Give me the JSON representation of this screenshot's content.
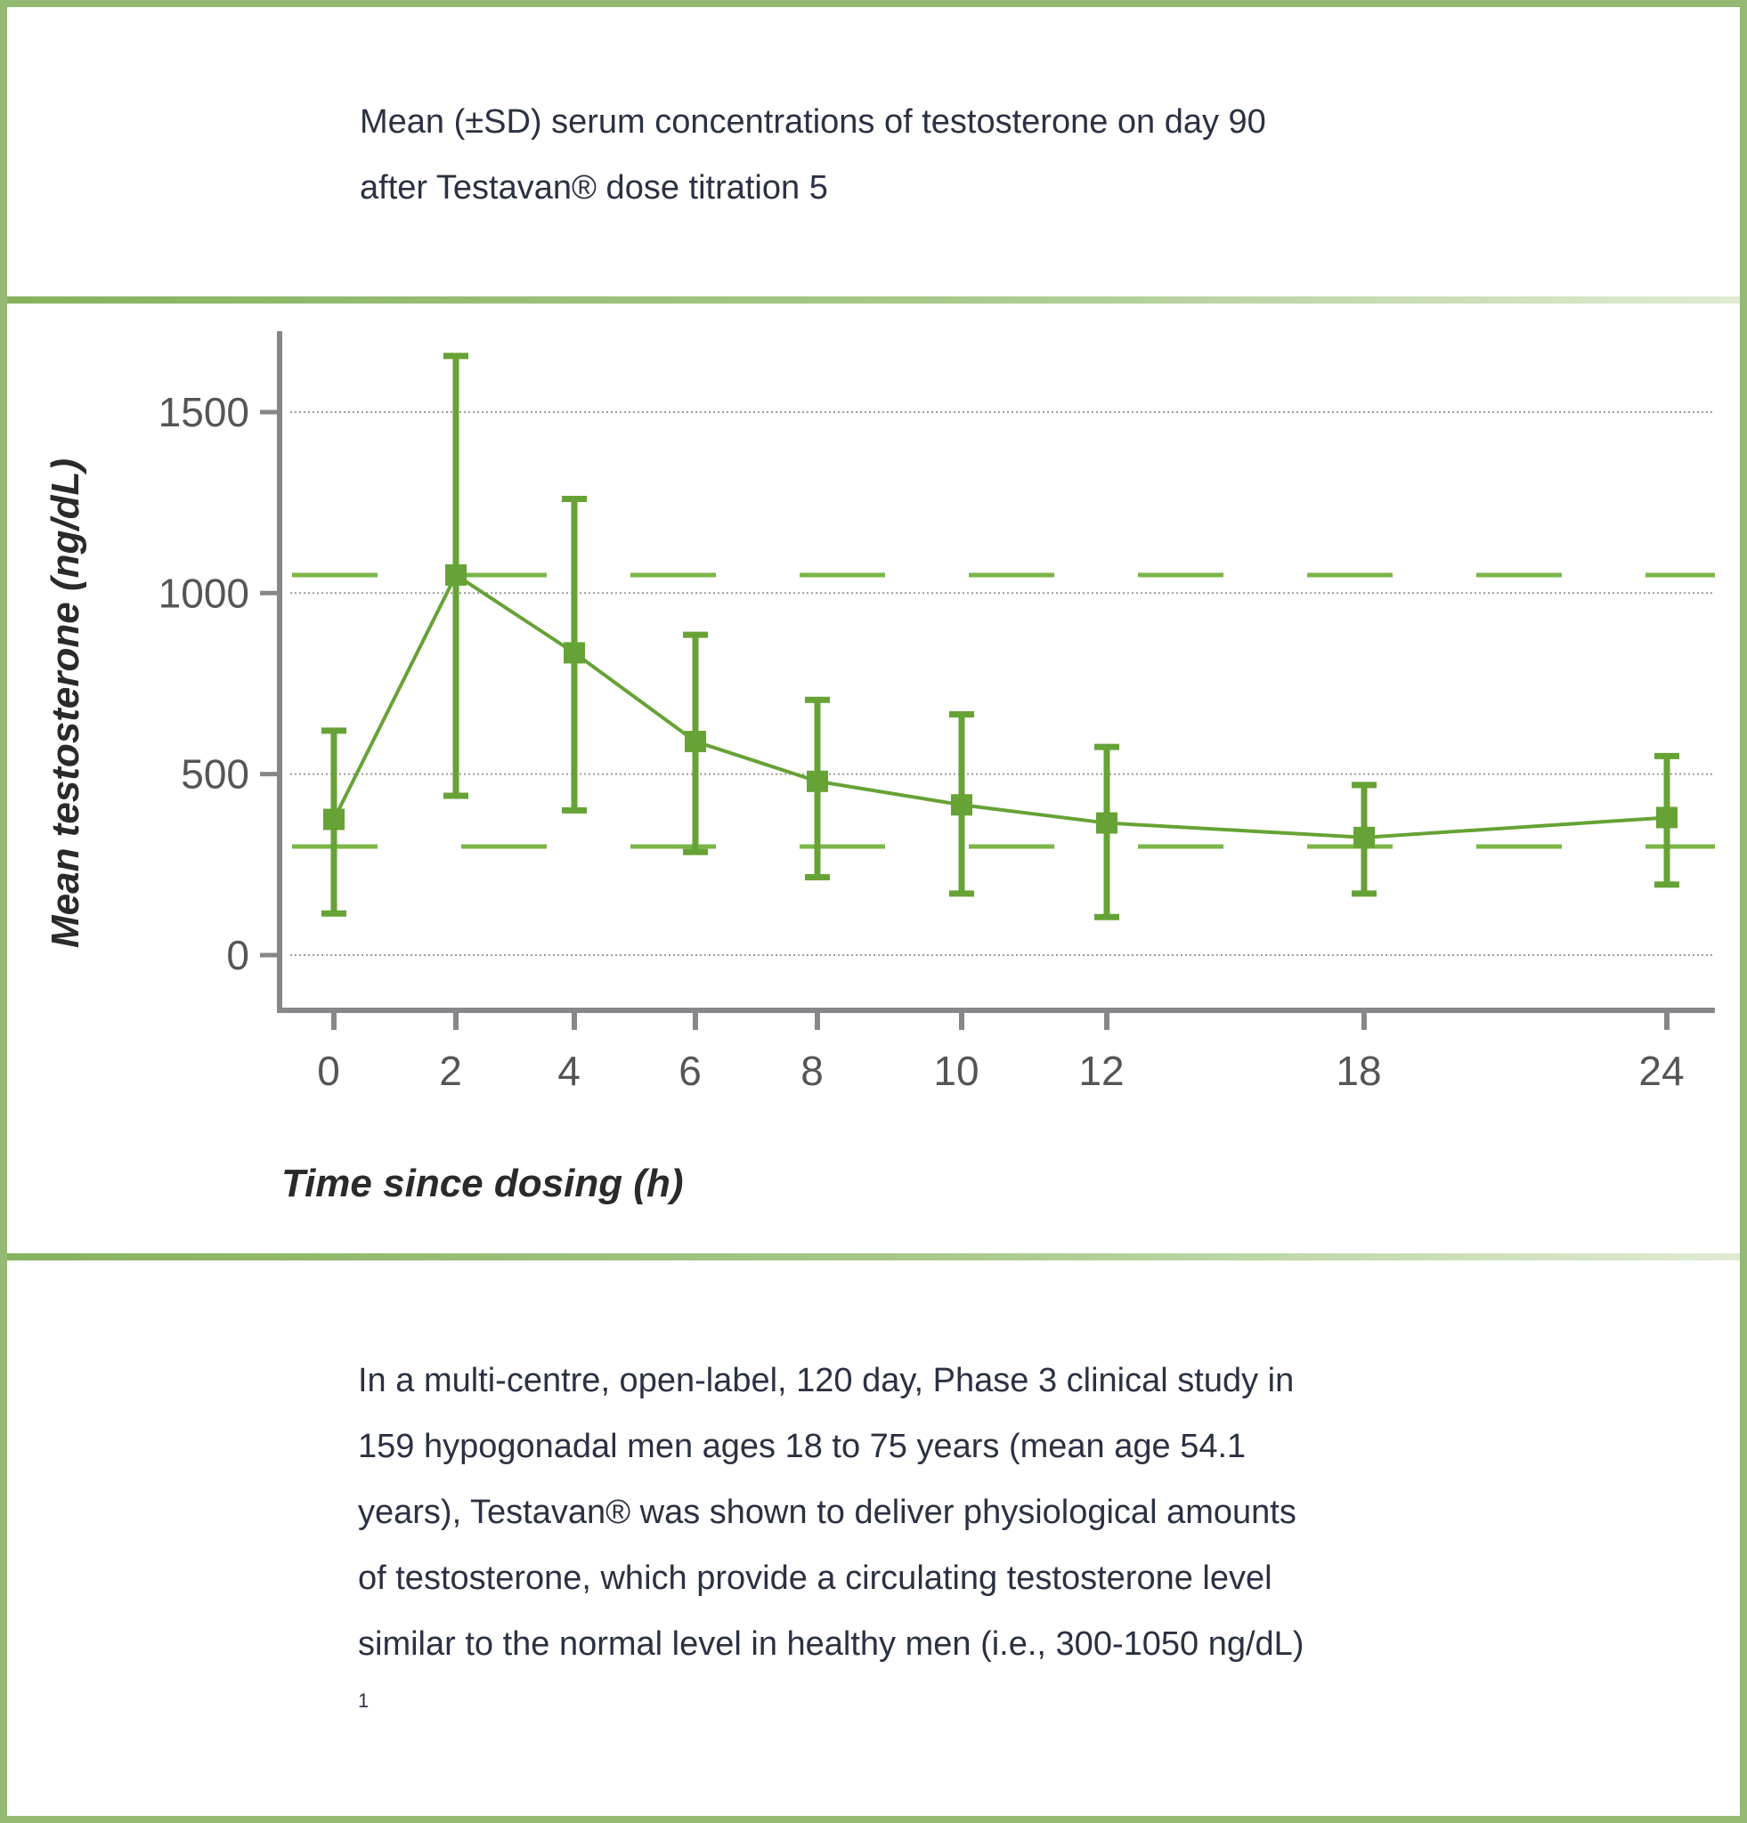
{
  "header": {
    "caption_line1": "Mean (±SD) serum concentrations of testosterone on day 90",
    "caption_line2": "after Testavan® dose titration 5"
  },
  "colors": {
    "border": "#94b972",
    "series": "#66a235",
    "reference_line": "#7ab648",
    "axis": "#85878a",
    "grid": "#9a9a9a",
    "text": "#2a3142"
  },
  "chart_data": {
    "type": "line",
    "xlabel": "Time since dosing (h)",
    "ylabel": "Mean testosterone (ng/dL)",
    "x": [
      0,
      2,
      4,
      6,
      8,
      10,
      12,
      18,
      24
    ],
    "x_tick_labels": [
      "0",
      "2",
      "4",
      "6",
      "8",
      "10",
      "12",
      "18",
      "24"
    ],
    "y_ticks": [
      0,
      500,
      1000,
      1500
    ],
    "ylim": [
      -155,
      1725
    ],
    "grid": "horizontal dotted",
    "series": [
      {
        "values": [
          375,
          1050,
          835,
          590,
          480,
          415,
          365,
          325,
          380
        ],
        "sd_lower": [
          115,
          440,
          400,
          285,
          215,
          170,
          105,
          170,
          195
        ],
        "sd_upper": [
          620,
          1655,
          1260,
          885,
          705,
          665,
          575,
          470,
          550
        ],
        "marker": "square"
      }
    ],
    "reference_lines": [
      {
        "y": 300,
        "style": "dashed"
      },
      {
        "y": 1050,
        "style": "dashed"
      }
    ]
  },
  "body": {
    "lines": [
      "In a multi-centre, open-label, 120 day, Phase 3 clinical study in",
      "159 hypogonadal men ages 18 to 75 years (mean age 54.1",
      "years), Testavan® was shown to deliver physiological amounts",
      "of testosterone, which provide a circulating testosterone level",
      "similar to the normal level in healthy men (i.e., 300-1050 ng/dL)"
    ],
    "footnote": "1"
  }
}
